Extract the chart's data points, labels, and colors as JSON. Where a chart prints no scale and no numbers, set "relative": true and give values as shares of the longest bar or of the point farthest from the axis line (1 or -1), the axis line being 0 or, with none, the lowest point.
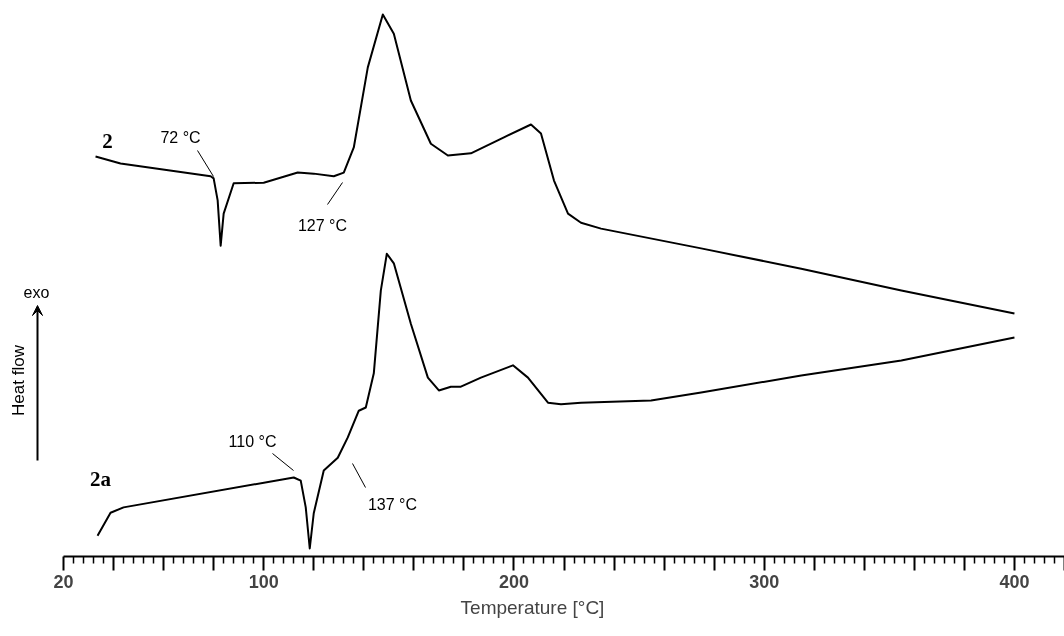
{
  "chart_data": {
    "type": "line",
    "relative": true,
    "xlabel": "Temperature [°C]",
    "ylabel": "Heat flow",
    "xlim": [
      20,
      420
    ],
    "xticks": [
      20,
      {
        "value": 40,
        "label": null
      },
      {
        "value": 60,
        "label": null
      },
      {
        "value": 80,
        "label": null
      },
      100,
      {
        "value": 120,
        "label": null
      },
      {
        "value": 140,
        "label": null
      },
      {
        "value": 160,
        "label": null
      },
      {
        "value": 180,
        "label": null
      },
      200,
      {
        "value": 220,
        "label": null
      },
      {
        "value": 240,
        "label": null
      },
      {
        "value": 260,
        "label": null
      },
      {
        "value": 280,
        "label": null
      },
      300,
      {
        "value": 320,
        "label": null
      },
      {
        "value": 340,
        "label": null
      },
      {
        "value": 360,
        "label": null
      },
      {
        "value": 380,
        "label": null
      },
      400,
      {
        "value": 420,
        "label": null
      }
    ],
    "grid": false,
    "marker": "none",
    "line_style": "solid",
    "series": [
      {
        "name": "2",
        "color": "#000000",
        "x": [
          32.8,
          42.8,
          78.8,
          80,
          81.6,
          82.8,
          84,
          88,
          100,
          113.6,
          120,
          128,
          132,
          136,
          141.6,
          147.6,
          152,
          158.8,
          166.8,
          173.6,
          182.8,
          196,
          206.8,
          210.8,
          216,
          221.6,
          226.8,
          234.8,
          274.8,
          314.8,
          354.8,
          400
        ],
        "values": [
          0.734,
          0.721,
          0.697,
          0.693,
          0.652,
          0.567,
          0.627,
          0.684,
          0.685,
          0.704,
          0.702,
          0.697,
          0.704,
          0.751,
          0.901,
          1.0,
          0.964,
          0.839,
          0.758,
          0.736,
          0.74,
          0.77,
          0.794,
          0.777,
          0.689,
          0.627,
          0.61,
          0.599,
          0.562,
          0.524,
          0.483,
          0.44
        ]
      },
      {
        "name": "2a",
        "color": "#000000",
        "x": [
          33.6,
          38.8,
          44,
          112,
          114.8,
          116.8,
          118.4,
          120,
          124,
          129.6,
          133.6,
          138,
          140.8,
          144,
          146.8,
          149.2,
          152,
          158.8,
          165.6,
          170,
          174.8,
          178.8,
          186.8,
          199.6,
          205.6,
          213.6,
          218.8,
          226.8,
          254.8,
          274.8,
          314.8,
          354.8,
          400
        ],
        "values": [
          0.024,
          0.067,
          0.077,
          0.133,
          0.127,
          0.077,
          0.0,
          0.066,
          0.146,
          0.17,
          0.208,
          0.258,
          0.264,
          0.328,
          0.483,
          0.552,
          0.534,
          0.421,
          0.32,
          0.296,
          0.303,
          0.303,
          0.32,
          0.343,
          0.32,
          0.273,
          0.27,
          0.273,
          0.277,
          0.292,
          0.324,
          0.352,
          0.395
        ]
      }
    ],
    "annotations": [
      "72 °C",
      "127 °C",
      "110 °C",
      "137 °C",
      "exo"
    ]
  }
}
